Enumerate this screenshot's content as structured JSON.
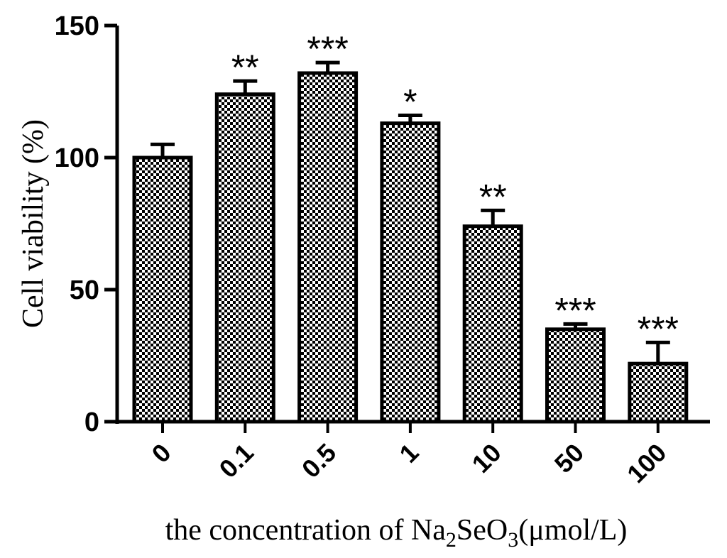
{
  "chart_data": {
    "type": "bar",
    "categories": [
      "0",
      "0.1",
      "0.5",
      "1",
      "10",
      "50",
      "100"
    ],
    "values": [
      100,
      124,
      132,
      113,
      74,
      35,
      22
    ],
    "errors": [
      5,
      5,
      4,
      3,
      6,
      2,
      8
    ],
    "significance": [
      "",
      "**",
      "***",
      "*",
      "**",
      "***",
      "***"
    ],
    "ylabel": "Cell viability (%)",
    "xlabel": {
      "prefix": "the concentration of Na",
      "sub1": "2",
      "mid": "SeO",
      "sub2": "3",
      "suffix": "(μmol/L)"
    },
    "ylim": [
      0,
      150
    ],
    "yticks": [
      0,
      50,
      100,
      150
    ],
    "grid": false,
    "bar_fill": "checkerboard",
    "colors": {
      "bar_dark": "#000000",
      "bar_light": "#ffffff",
      "axis": "#000000"
    }
  }
}
